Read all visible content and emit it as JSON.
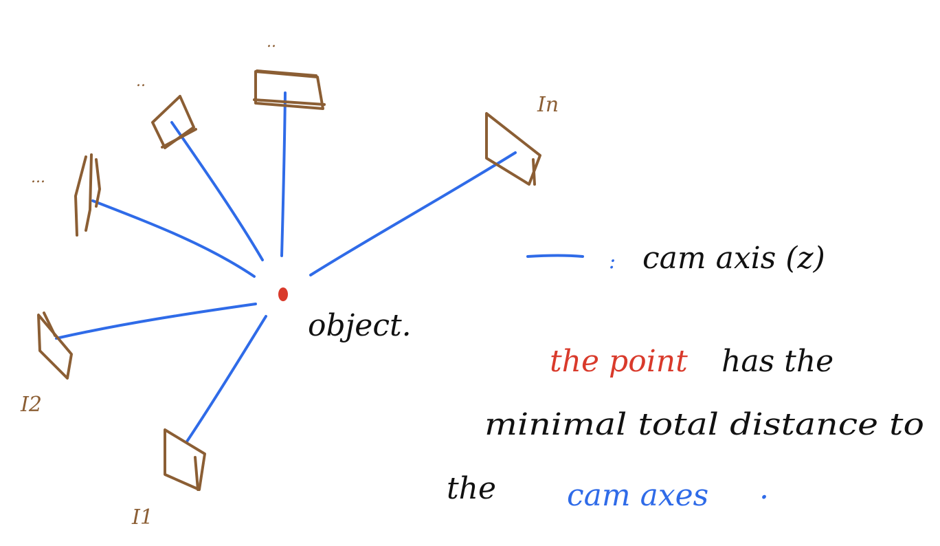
{
  "colors": {
    "camera": "#8B5E34",
    "axis": "#2F6BE8",
    "object": "#D93A2B",
    "text": "#111111"
  },
  "cameras": {
    "top_label": "..",
    "upper_left_label": "..",
    "left_label": "...",
    "right_label": "In",
    "left_lower_label": "I2",
    "bottom_label": "I1"
  },
  "object_label": "object.",
  "legend": {
    "colon": ":",
    "text": "cam axis (z)"
  },
  "caption": {
    "line1_red": "the point",
    "line1_rest": "has the",
    "line2": "minimal total distance to",
    "line3_start": "the",
    "line3_blue": "cam axes",
    "line3_end": "."
  }
}
